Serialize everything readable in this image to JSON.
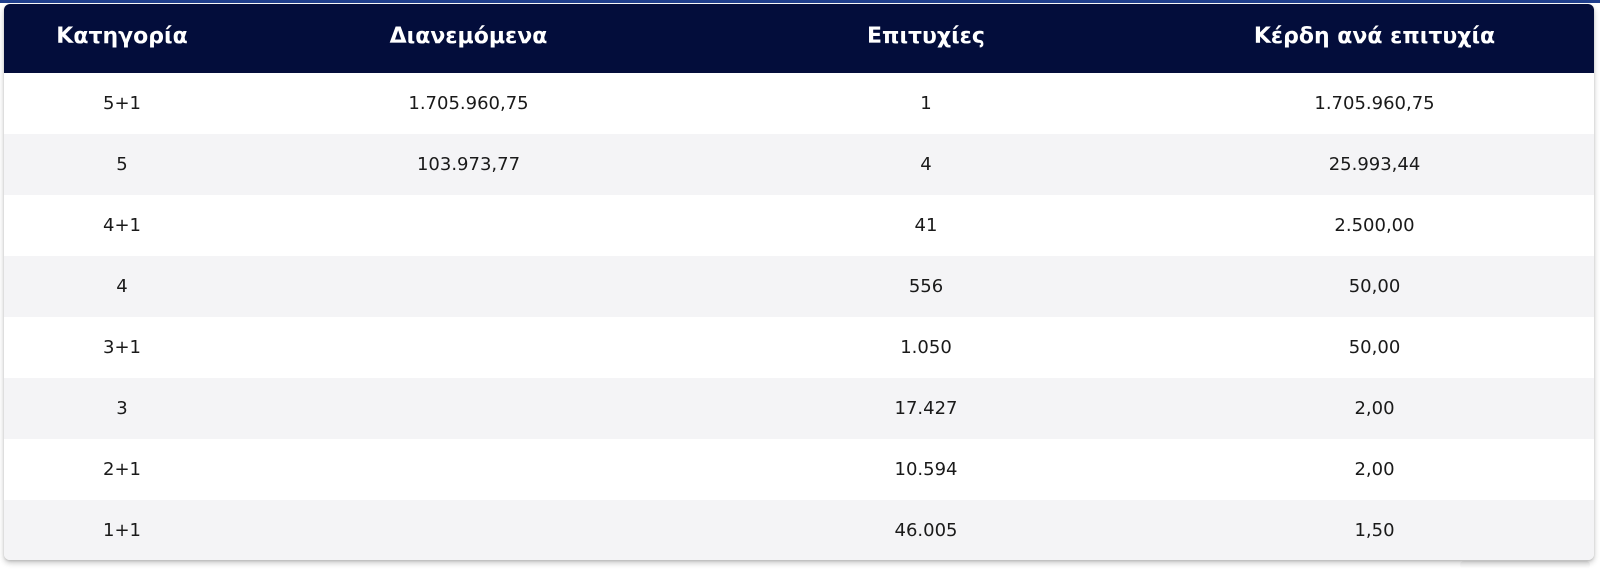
{
  "table": {
    "headers": [
      "Κατηγορία",
      "Διανεμόμενα",
      "Επιτυχίες",
      "Κέρδη ανά επιτυχία"
    ],
    "rows": [
      {
        "category": "5+1",
        "distributed": "1.705.960,75",
        "winners": "1",
        "prize_per_winner": "1.705.960,75"
      },
      {
        "category": "5",
        "distributed": "103.973,77",
        "winners": "4",
        "prize_per_winner": "25.993,44"
      },
      {
        "category": "4+1",
        "distributed": "",
        "winners": "41",
        "prize_per_winner": "2.500,00"
      },
      {
        "category": "4",
        "distributed": "",
        "winners": "556",
        "prize_per_winner": "50,00"
      },
      {
        "category": "3+1",
        "distributed": "",
        "winners": "1.050",
        "prize_per_winner": "50,00"
      },
      {
        "category": "3",
        "distributed": "",
        "winners": "17.427",
        "prize_per_winner": "2,00"
      },
      {
        "category": "2+1",
        "distributed": "",
        "winners": "10.594",
        "prize_per_winner": "2,00"
      },
      {
        "category": "1+1",
        "distributed": "",
        "winners": "46.005",
        "prize_per_winner": "1,50"
      }
    ]
  },
  "colors": {
    "header_bg": "#030d3b",
    "header_text": "#ffffff",
    "row_alt_bg": "#f4f4f6",
    "top_accent": "#1f3e8c"
  }
}
